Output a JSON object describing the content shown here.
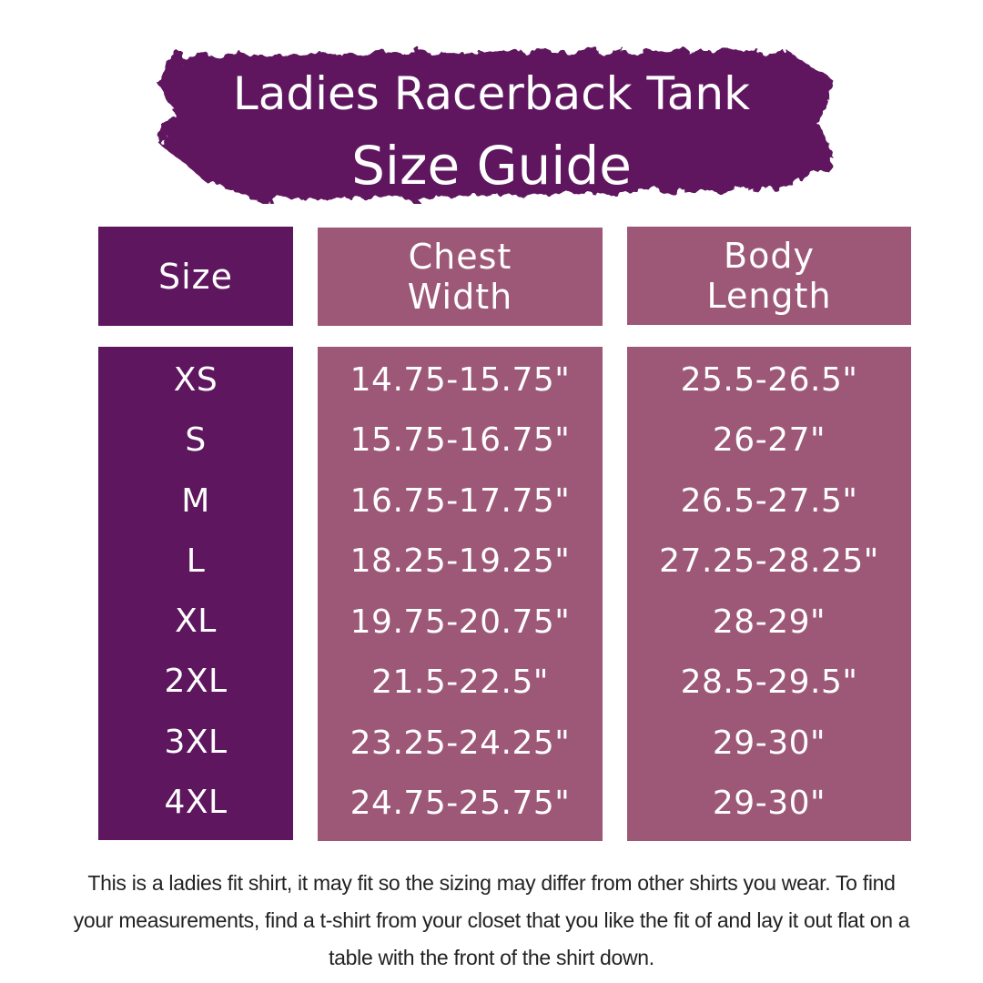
{
  "title": {
    "line1": "Ladies Racerback Tank",
    "line2": "Size Guide"
  },
  "colors": {
    "dark_purple": "#5e175e",
    "mauve": "#9e5877",
    "text": "#ffffff"
  },
  "headers": {
    "size": "Size",
    "chest": "Chest Width",
    "body": "Body Length"
  },
  "rows": [
    {
      "size": "XS",
      "chest": "14.75-15.75\"",
      "body": "25.5-26.5\""
    },
    {
      "size": "S",
      "chest": "15.75-16.75\"",
      "body": "26-27\""
    },
    {
      "size": "M",
      "chest": "16.75-17.75\"",
      "body": "26.5-27.5\""
    },
    {
      "size": "L",
      "chest": "18.25-19.25\"",
      "body": "27.25-28.25\""
    },
    {
      "size": "XL",
      "chest": "19.75-20.75\"",
      "body": "28-29\""
    },
    {
      "size": "2XL",
      "chest": "21.5-22.5\"",
      "body": "28.5-29.5\""
    },
    {
      "size": "3XL",
      "chest": "23.25-24.25\"",
      "body": "29-30\""
    },
    {
      "size": "4XL",
      "chest": "24.75-25.75\"",
      "body": "29-30\""
    }
  ],
  "note": "This is a ladies fit shirt, it may fit so the sizing may differ from other shirts you wear. To find your measurements, find a t-shirt from your closet that you like the fit of and lay it out flat on a table with the front of the shirt down."
}
